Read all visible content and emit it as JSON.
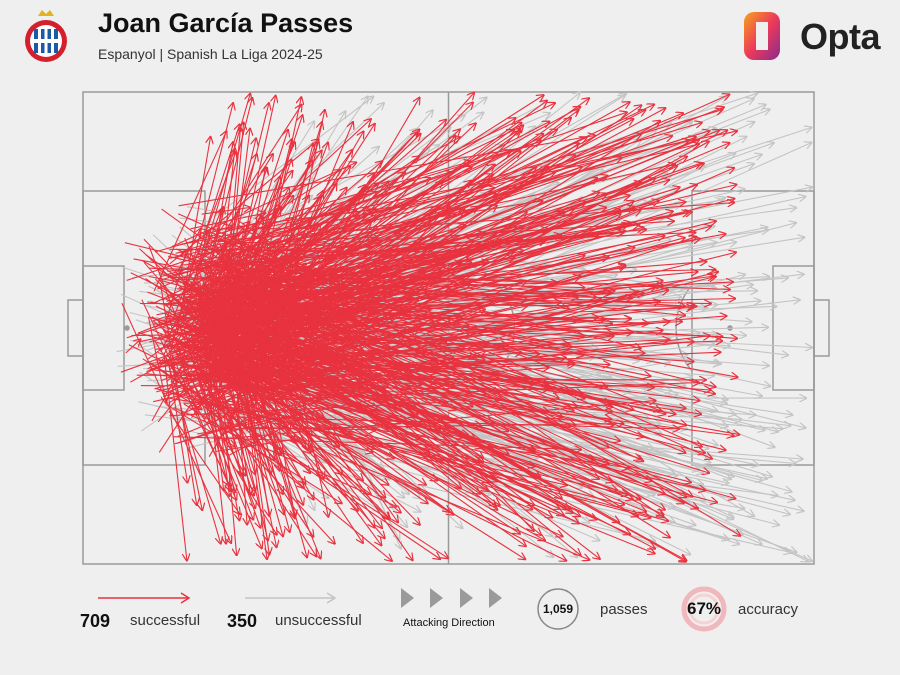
{
  "header": {
    "title": "Joan García Passes",
    "subtitle": "Espanyol | Spanish La Liga 2024-25",
    "brand": "Opta",
    "crest_icon": "espanyol-crest-icon",
    "logo_icon": "opta-logo-icon"
  },
  "colors": {
    "successful": "#e8323f",
    "unsuccessful": "#c4c4c4",
    "pitch_lines": "#9a9a9a",
    "background": "#efefef"
  },
  "legend": {
    "successful_count": "709",
    "successful_label": "successful",
    "unsuccessful_count": "350",
    "unsuccessful_label": "unsuccessful",
    "direction_label": "Attacking Direction",
    "total_passes": "1,059",
    "passes_label": "passes",
    "accuracy_value": "67%",
    "accuracy_label": "accuracy"
  },
  "chart_data": {
    "type": "scatter",
    "title": "Joan García Passes",
    "subtitle": "Espanyol | Spanish La Liga 2024-25",
    "pitch_range": {
      "x": [
        0,
        100
      ],
      "y": [
        0,
        100
      ]
    },
    "attacking_direction": "left-to-right",
    "series": [
      {
        "name": "successful",
        "count": 709,
        "color": "#e8323f",
        "origin_x_range": [
          3,
          30
        ],
        "origin_y_range": [
          20,
          80
        ],
        "end_x_range": [
          3,
          90
        ],
        "end_y_range": [
          0,
          100
        ]
      },
      {
        "name": "unsuccessful",
        "count": 350,
        "color": "#c4c4c4",
        "origin_x_range": [
          3,
          30
        ],
        "origin_y_range": [
          20,
          80
        ],
        "end_x_range": [
          30,
          100
        ],
        "end_y_range": [
          0,
          100
        ]
      }
    ],
    "total": 1059,
    "accuracy_pct": 67
  }
}
